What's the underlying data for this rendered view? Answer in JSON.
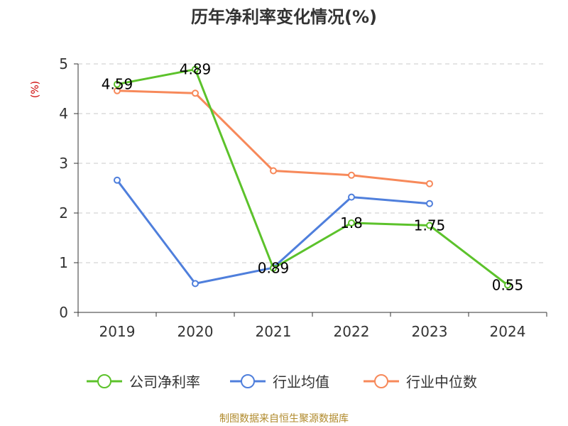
{
  "chart_data": {
    "type": "line",
    "title": "历年净利率变化情况(%)",
    "ylabel": "(%)",
    "xlabel": "",
    "categories": [
      "2019",
      "2020",
      "2021",
      "2022",
      "2023",
      "2024"
    ],
    "ylim": [
      0,
      5
    ],
    "yticks": [
      "0",
      "1",
      "2",
      "3",
      "4",
      "5"
    ],
    "grid": true,
    "legend_position": "bottom",
    "series": [
      {
        "name": "公司净利率",
        "color": "#5cc22b",
        "values": [
          4.59,
          4.89,
          0.89,
          1.8,
          1.75,
          0.55
        ],
        "labels": [
          "4.59",
          "4.89",
          "0.89",
          "1.8",
          "1.75",
          "0.55"
        ]
      },
      {
        "name": "行业均值",
        "color": "#4f7fdc",
        "values": [
          2.66,
          0.58,
          0.9,
          2.32,
          2.19,
          null
        ]
      },
      {
        "name": "行业中位数",
        "color": "#f7895a",
        "values": [
          4.46,
          4.41,
          2.85,
          2.76,
          2.59,
          null
        ]
      }
    ]
  },
  "source_note": "制图数据来自恒生聚源数据库"
}
